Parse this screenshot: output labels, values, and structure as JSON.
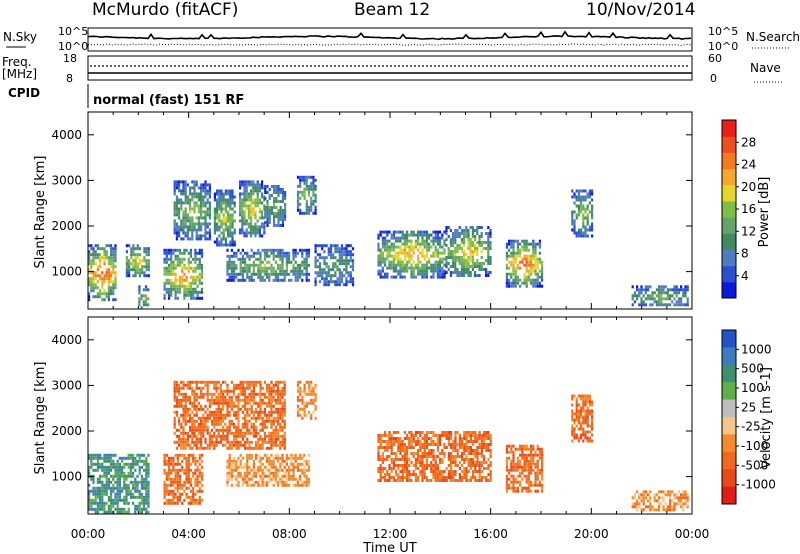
{
  "header": {
    "radar": "McMurdo (fitACF)",
    "beam": "Beam 12",
    "date": "10/Nov/2014"
  },
  "noise_panel": {
    "left_label": "N.Sky",
    "right_label": "N.Search",
    "ticks_left": [
      "10^5",
      "10^0"
    ],
    "ticks_right": [
      "10^5",
      "10^0"
    ]
  },
  "freq_panel": {
    "label_line1": "Freq.",
    "label_line2": "[MHz]",
    "ticks_left": [
      "18",
      "8"
    ],
    "ticks_right": [
      "60",
      "0"
    ],
    "right_label": "Nave"
  },
  "cpid_panel": {
    "label": "CPID",
    "text": "normal (fast) 151 RF"
  },
  "x_axis": {
    "ticks": [
      "00:00",
      "04:00",
      "08:00",
      "12:00",
      "16:00",
      "20:00",
      "00:00"
    ],
    "label": "Time UT"
  },
  "colors": {
    "power": [
      "#0a1ad8",
      "#2a4fd0",
      "#4f7bbf",
      "#3f8a62",
      "#66a36a",
      "#7fbe46",
      "#e6d62a",
      "#f3a92b",
      "#f47a20",
      "#ee4f1e",
      "#e81f18"
    ],
    "velocity": [
      "#2450c8",
      "#3c7bc0",
      "#3e8f72",
      "#5fb048",
      "#bebebe",
      "#f5c58a",
      "#f58a2a",
      "#ef6a1e",
      "#ea4a1a",
      "#e51c16"
    ]
  },
  "chart_data": [
    {
      "type": "heatmap",
      "panel": "power",
      "ylabel": "Slant Range [km]",
      "xlabel": "Time UT",
      "x_ticks": [
        "00:00",
        "04:00",
        "08:00",
        "12:00",
        "16:00",
        "20:00",
        "00:00"
      ],
      "xlim_hours": [
        0,
        24
      ],
      "y_ticks": [
        1000,
        2000,
        3000,
        4000
      ],
      "ylim": [
        180,
        4500
      ],
      "colorbar": {
        "label": "Power [dB]",
        "ticks": [
          4,
          8,
          12,
          16,
          20,
          24,
          28
        ],
        "range": [
          0,
          30
        ]
      },
      "echo_regions": [
        {
          "t0": 0.0,
          "t1": 1.1,
          "r0": 400,
          "r1": 1600,
          "peak": 26
        },
        {
          "t0": 1.5,
          "t1": 2.4,
          "r0": 900,
          "r1": 1600,
          "peak": 18
        },
        {
          "t0": 2.0,
          "t1": 2.4,
          "r0": 200,
          "r1": 700,
          "peak": 14
        },
        {
          "t0": 3.0,
          "t1": 4.5,
          "r0": 400,
          "r1": 1500,
          "peak": 22
        },
        {
          "t0": 3.4,
          "t1": 4.8,
          "r0": 1700,
          "r1": 3000,
          "peak": 14
        },
        {
          "t0": 5.0,
          "t1": 5.8,
          "r0": 1600,
          "r1": 2800,
          "peak": 16
        },
        {
          "t0": 6.0,
          "t1": 7.0,
          "r0": 1800,
          "r1": 3000,
          "peak": 18
        },
        {
          "t0": 7.0,
          "t1": 7.8,
          "r0": 2000,
          "r1": 2900,
          "peak": 12
        },
        {
          "t0": 5.5,
          "t1": 8.8,
          "r0": 800,
          "r1": 1500,
          "peak": 14
        },
        {
          "t0": 8.3,
          "t1": 9.0,
          "r0": 2300,
          "r1": 3100,
          "peak": 14
        },
        {
          "t0": 9.0,
          "t1": 10.5,
          "r0": 700,
          "r1": 1600,
          "peak": 10
        },
        {
          "t0": 11.5,
          "t1": 14.2,
          "r0": 900,
          "r1": 1900,
          "peak": 20
        },
        {
          "t0": 14.2,
          "t1": 16.0,
          "r0": 900,
          "r1": 2000,
          "peak": 18
        },
        {
          "t0": 16.6,
          "t1": 18.0,
          "r0": 700,
          "r1": 1700,
          "peak": 24
        },
        {
          "t0": 19.2,
          "t1": 20.0,
          "r0": 1800,
          "r1": 2800,
          "peak": 14
        },
        {
          "t0": 21.6,
          "t1": 23.8,
          "r0": 250,
          "r1": 700,
          "peak": 12
        }
      ]
    },
    {
      "type": "heatmap",
      "panel": "velocity",
      "ylabel": "Slant Range [km]",
      "xlabel": "Time UT",
      "x_ticks": [
        "00:00",
        "04:00",
        "08:00",
        "12:00",
        "16:00",
        "20:00",
        "00:00"
      ],
      "xlim_hours": [
        0,
        24
      ],
      "y_ticks": [
        1000,
        2000,
        3000,
        4000
      ],
      "ylim": [
        180,
        4500
      ],
      "colorbar": {
        "label": "Velocity [m s-1]",
        "ticks": [
          "1000",
          "500",
          "100",
          "25",
          "-25",
          "-100",
          "-500",
          "-1000"
        ],
        "range": [
          -1000,
          1000
        ]
      },
      "echo_regions": [
        {
          "t0": 0.0,
          "t1": 2.4,
          "r0": 200,
          "r1": 1500,
          "vel": 100
        },
        {
          "t0": 3.0,
          "t1": 4.5,
          "r0": 400,
          "r1": 1500,
          "vel": -500
        },
        {
          "t0": 3.4,
          "t1": 7.8,
          "r0": 1600,
          "r1": 3100,
          "vel": -500
        },
        {
          "t0": 5.5,
          "t1": 8.8,
          "r0": 800,
          "r1": 1500,
          "vel": -100
        },
        {
          "t0": 8.3,
          "t1": 9.0,
          "r0": 2300,
          "r1": 3100,
          "vel": -200
        },
        {
          "t0": 11.5,
          "t1": 16.0,
          "r0": 900,
          "r1": 2000,
          "vel": -500
        },
        {
          "t0": 16.6,
          "t1": 18.0,
          "r0": 700,
          "r1": 1700,
          "vel": -500
        },
        {
          "t0": 19.2,
          "t1": 20.0,
          "r0": 1800,
          "r1": 2800,
          "vel": -500
        },
        {
          "t0": 21.6,
          "t1": 23.8,
          "r0": 250,
          "r1": 700,
          "vel": -400
        }
      ]
    }
  ]
}
